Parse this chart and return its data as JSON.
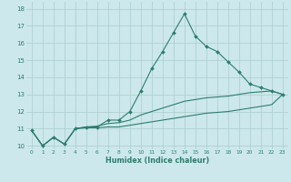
{
  "title": "",
  "xlabel": "Humidex (Indice chaleur)",
  "bg_color": "#cce8ec",
  "grid_color": "#aacccc",
  "line_color": "#2e7d6e",
  "x_values": [
    0,
    1,
    2,
    3,
    4,
    5,
    6,
    7,
    8,
    9,
    10,
    11,
    12,
    13,
    14,
    15,
    16,
    17,
    18,
    19,
    20,
    21,
    22,
    23
  ],
  "line1_y": [
    10.9,
    10.0,
    10.5,
    10.1,
    11.0,
    11.1,
    11.1,
    11.5,
    11.5,
    12.0,
    13.2,
    14.5,
    15.5,
    16.6,
    17.7,
    16.4,
    15.8,
    15.5,
    14.9,
    14.3,
    13.6,
    13.4,
    13.2,
    13.0
  ],
  "line2_y": [
    10.9,
    10.0,
    10.5,
    10.1,
    11.0,
    11.1,
    11.15,
    11.3,
    11.35,
    11.5,
    11.8,
    12.0,
    12.2,
    12.4,
    12.6,
    12.7,
    12.8,
    12.85,
    12.9,
    13.0,
    13.1,
    13.15,
    13.2,
    13.0
  ],
  "line3_y": [
    10.9,
    10.0,
    10.5,
    10.1,
    11.0,
    11.05,
    11.05,
    11.1,
    11.1,
    11.2,
    11.3,
    11.4,
    11.5,
    11.6,
    11.7,
    11.8,
    11.9,
    11.95,
    12.0,
    12.1,
    12.2,
    12.3,
    12.4,
    13.0
  ],
  "ylim": [
    9.8,
    18.4
  ],
  "xlim": [
    -0.5,
    23.5
  ],
  "yticks": [
    10,
    11,
    12,
    13,
    14,
    15,
    16,
    17,
    18
  ],
  "xticks": [
    0,
    1,
    2,
    3,
    4,
    5,
    6,
    7,
    8,
    9,
    10,
    11,
    12,
    13,
    14,
    15,
    16,
    17,
    18,
    19,
    20,
    21,
    22,
    23
  ]
}
